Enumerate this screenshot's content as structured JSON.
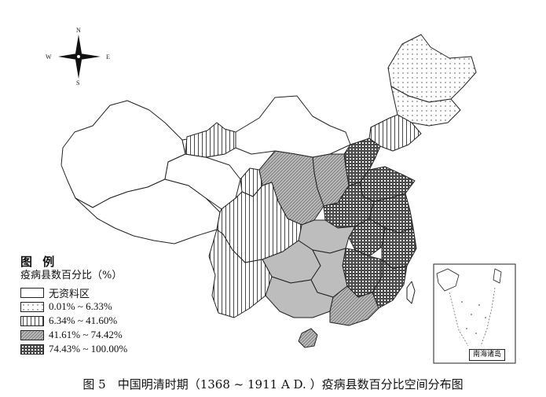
{
  "compass": {
    "north": "N",
    "south": "S",
    "east": "E",
    "west": "W"
  },
  "legend": {
    "title": "图 例",
    "subtitle": "疫病县数百分比（%）",
    "items": [
      {
        "label": "无资料区",
        "pattern": "none"
      },
      {
        "label": "0.01% ~ 6.33%",
        "pattern": "dots"
      },
      {
        "label": "6.34% ~ 41.60%",
        "pattern": "vertical-lines"
      },
      {
        "label": "41.61% ~ 74.42%",
        "pattern": "diagonal-hatch"
      },
      {
        "label": "74.43% ~ 100.00%",
        "pattern": "dense-grid"
      }
    ]
  },
  "inset": {
    "label": "南海诸岛"
  },
  "caption": "图 5　中国明清时期（1368 ~ 1911 A  D. ）疫病县数百分比空间分布图",
  "colors": {
    "outline": "#222222",
    "gray_fill": "#bdbdbd",
    "dark_fill": "#555555"
  }
}
